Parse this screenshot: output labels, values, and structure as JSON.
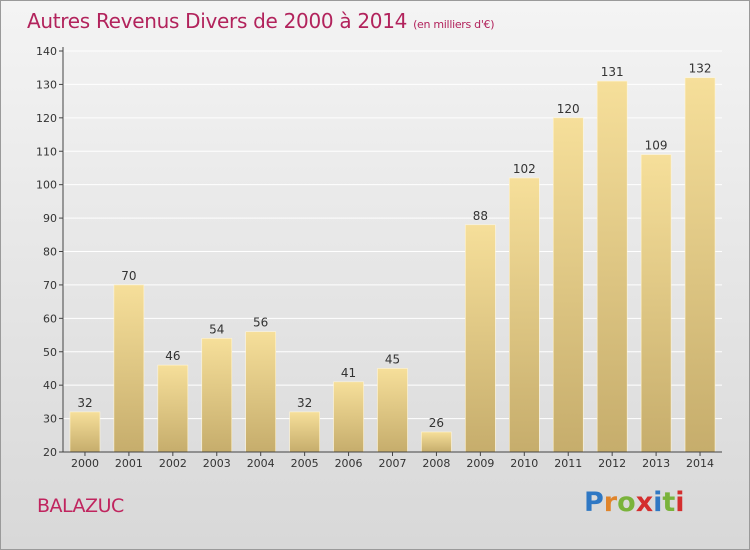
{
  "title": "Autres Revenus Divers de 2000 à 2014",
  "unit": "(en milliers d'€)",
  "commune": "BALAZUC",
  "brand": {
    "letters": [
      "P",
      "r",
      "o",
      "x",
      "i",
      "t",
      "i"
    ],
    "colors": [
      "#2f78c4",
      "#e0842a",
      "#7ab33b",
      "#d42e2e",
      "#2f78c4",
      "#7ab33b",
      "#d42e2e"
    ]
  },
  "colors": {
    "bar_top": "#f6df9a",
    "bar_bottom": "#c6ad6c",
    "axis": "#444444",
    "grid": "#ffffff",
    "title": "#b2235c"
  },
  "chart_data": {
    "type": "bar",
    "categories": [
      "2000",
      "2001",
      "2002",
      "2003",
      "2004",
      "2005",
      "2006",
      "2007",
      "2008",
      "2009",
      "2010",
      "2011",
      "2012",
      "2013",
      "2014"
    ],
    "values": [
      32,
      70,
      46,
      54,
      56,
      32,
      41,
      45,
      26,
      88,
      102,
      120,
      131,
      109,
      132
    ],
    "ylim": [
      20,
      140
    ],
    "yticks": [
      20,
      30,
      40,
      50,
      60,
      70,
      80,
      90,
      100,
      110,
      120,
      130,
      140
    ],
    "grid": true,
    "data_labels": true
  }
}
